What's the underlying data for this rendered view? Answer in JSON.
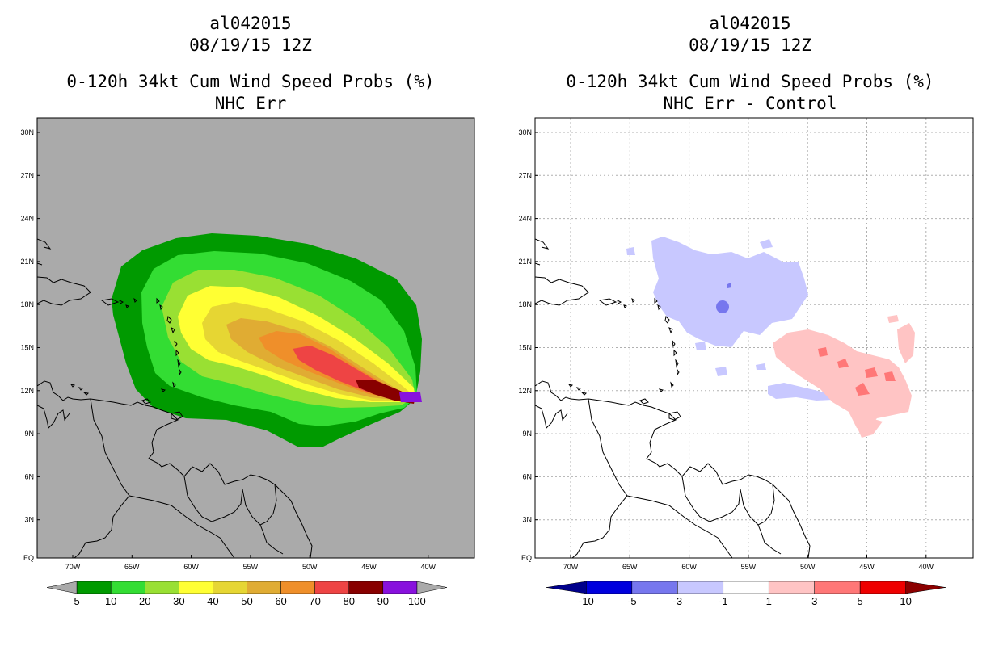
{
  "left_panel": {
    "storm_id": "al042015",
    "datetime": "08/19/15 12Z",
    "product": "0-120h 34kt Cum Wind Speed Probs (%)",
    "subtitle": "NHC Err",
    "colorbar": {
      "levels": [
        "5",
        "10",
        "20",
        "30",
        "40",
        "50",
        "60",
        "70",
        "80",
        "90",
        "100"
      ],
      "colors": [
        "#009a00",
        "#33dd33",
        "#99e033",
        "#ffff33",
        "#e6d633",
        "#e0ac33",
        "#ef8f2a",
        "#ee4444",
        "#880000",
        "#8811dd"
      ],
      "under_color": "#aaaaaa",
      "over_color": "#aaaaaa"
    },
    "background_color": "#aaaaaa"
  },
  "right_panel": {
    "storm_id": "al042015",
    "datetime": "08/19/15 12Z",
    "product": "0-120h 34kt Cum Wind Speed Probs (%)",
    "subtitle": "NHC Err - Control",
    "colorbar": {
      "levels": [
        "-10",
        "-5",
        "-3",
        "-1",
        "1",
        "3",
        "5",
        "10"
      ],
      "colors": [
        "#0000dd",
        "#7777ee",
        "#c8c8ff",
        "#ffffff",
        "#ffc4c4",
        "#ff7777",
        "#ee0000"
      ],
      "under_color": "#00008b",
      "over_color": "#8b0000"
    },
    "background_color": "#ffffff"
  },
  "axes": {
    "lat_labels": [
      "30N",
      "27N",
      "24N",
      "21N",
      "18N",
      "15N",
      "12N",
      "9N",
      "6N",
      "3N",
      "EQ"
    ],
    "lon_labels": [
      "70W",
      "65W",
      "60W",
      "55W",
      "50W",
      "45W",
      "40W"
    ]
  }
}
